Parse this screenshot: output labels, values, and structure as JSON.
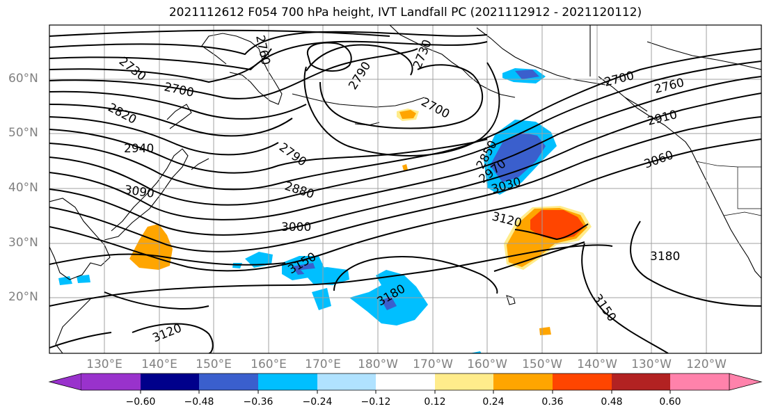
{
  "title": "2021112612 F054 700 hPa height, IVT Landfall PC (2021112912 - 2021120112)",
  "map": {
    "lat_labels": [
      "60°N",
      "50°N",
      "40°N",
      "30°N",
      "20°N"
    ],
    "lon_labels": [
      "130°E",
      "140°E",
      "150°E",
      "160°E",
      "170°E",
      "180°W",
      "170°W",
      "160°W",
      "150°W",
      "140°W",
      "130°W",
      "120°W"
    ],
    "contour_labels": [
      {
        "text": "2730"
      },
      {
        "text": "2700"
      },
      {
        "text": "2820"
      },
      {
        "text": "2940"
      },
      {
        "text": "3090"
      },
      {
        "text": "2760"
      },
      {
        "text": "2790"
      },
      {
        "text": "2730"
      },
      {
        "text": "2700"
      },
      {
        "text": "2790"
      },
      {
        "text": "2880"
      },
      {
        "text": "3000"
      },
      {
        "text": "3150"
      },
      {
        "text": "3180"
      },
      {
        "text": "3120"
      },
      {
        "text": "2850"
      },
      {
        "text": "2970"
      },
      {
        "text": "3030"
      },
      {
        "text": "3120"
      },
      {
        "text": "3180"
      },
      {
        "text": "3150"
      },
      {
        "text": "2700"
      },
      {
        "text": "2760"
      },
      {
        "text": "2910"
      },
      {
        "text": "3060"
      }
    ]
  },
  "colorbar": {
    "colors": [
      "#9932cc",
      "#00008b",
      "#3a5fcd",
      "#00bfff",
      "#b0e2ff",
      "#ffffff",
      "#ffec8b",
      "#ffa500",
      "#ff4500",
      "#b22222",
      "#ff82ab"
    ],
    "ticks": [
      "−0.60",
      "−0.48",
      "−0.36",
      "−0.24",
      "−0.12",
      "0.12",
      "0.24",
      "0.36",
      "0.48",
      "0.60"
    ]
  }
}
